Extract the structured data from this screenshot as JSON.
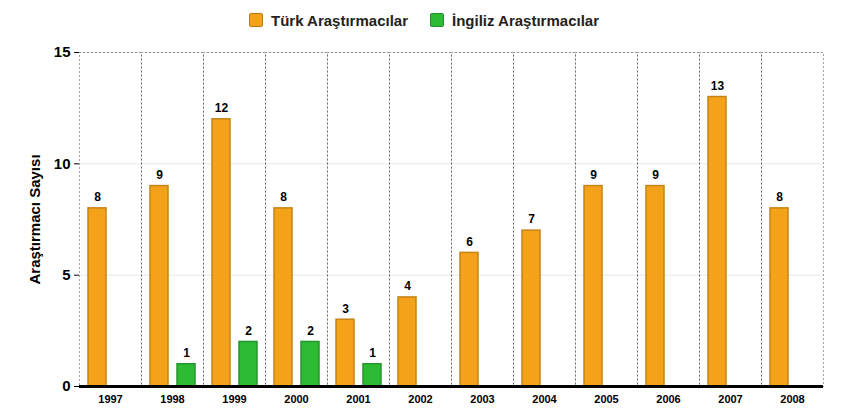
{
  "chart_data": {
    "type": "bar",
    "categories": [
      "1997",
      "1998",
      "1999",
      "2000",
      "2001",
      "2002",
      "2003",
      "2004",
      "2005",
      "2006",
      "2007",
      "2008"
    ],
    "series": [
      {
        "name": "Türk Araştırmacılar",
        "color": "#f5a21b",
        "values": [
          8,
          9,
          12,
          8,
          3,
          4,
          6,
          7,
          9,
          9,
          13,
          8
        ]
      },
      {
        "name": "İngiliz Araştırmacılar",
        "color": "#2dbb36",
        "values": [
          null,
          1,
          2,
          2,
          1,
          null,
          null,
          null,
          null,
          null,
          null,
          null
        ]
      }
    ],
    "y_label": "Araştırmacı Sayısı",
    "ylim": [
      0,
      15
    ],
    "yticks": [
      0,
      5,
      10,
      15
    ],
    "grid": true,
    "legend": "top",
    "data_labels": true
  }
}
